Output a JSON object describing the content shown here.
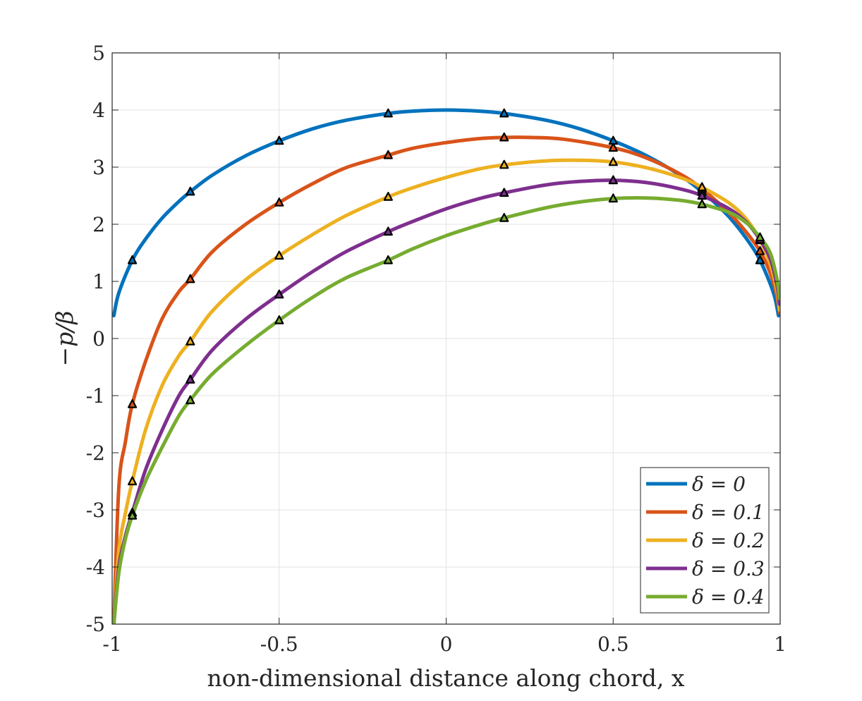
{
  "chart_data": {
    "type": "line",
    "xlabel": "non-dimensional distance along chord, x",
    "ylabel": "−p/β",
    "xlim": [
      -1,
      1
    ],
    "ylim": [
      -5,
      5
    ],
    "xticks": [
      -1,
      -0.5,
      0,
      0.5,
      1
    ],
    "xtick_labels": [
      "-1",
      "-0.5",
      "0",
      "0.5",
      "1"
    ],
    "yticks": [
      -5,
      -4,
      -3,
      -2,
      -1,
      0,
      1,
      2,
      3,
      4,
      5
    ],
    "ytick_labels": [
      "-5",
      "-4",
      "-3",
      "-2",
      "-1",
      "0",
      "1",
      "2",
      "3",
      "4",
      "5"
    ],
    "grid": true,
    "legend_position": "bottom-right",
    "marker_x": [
      -0.9397,
      -0.766,
      -0.5,
      -0.1736,
      0.1736,
      0.5,
      0.766,
      0.9397
    ],
    "series": [
      {
        "name": "δ = 0",
        "color": "#0072BD",
        "x": [
          -0.995,
          -0.98,
          -0.9397,
          -0.9,
          -0.85,
          -0.8,
          -0.766,
          -0.7,
          -0.6,
          -0.5,
          -0.4,
          -0.3,
          -0.1736,
          -0.1,
          0,
          0.1,
          0.1736,
          0.3,
          0.4,
          0.5,
          0.6,
          0.7,
          0.766,
          0.8,
          0.85,
          0.9,
          0.9397,
          0.98,
          0.995
        ],
        "y": [
          0.4,
          0.8,
          1.37,
          1.74,
          2.11,
          2.4,
          2.57,
          2.86,
          3.2,
          3.46,
          3.67,
          3.82,
          3.94,
          3.98,
          4.0,
          3.98,
          3.94,
          3.82,
          3.67,
          3.46,
          3.2,
          2.86,
          2.57,
          2.4,
          2.11,
          1.74,
          1.37,
          0.8,
          0.4
        ],
        "markers": [
          1.37,
          2.57,
          3.46,
          3.94,
          3.94,
          3.46,
          2.57,
          1.37
        ]
      },
      {
        "name": "δ = 0.1",
        "color": "#D95319",
        "x": [
          -0.995,
          -0.98,
          -0.96,
          -0.9397,
          -0.9,
          -0.85,
          -0.8,
          -0.766,
          -0.7,
          -0.6,
          -0.5,
          -0.4,
          -0.3,
          -0.1736,
          -0.1,
          0,
          0.1,
          0.1736,
          0.25,
          0.35,
          0.5,
          0.6,
          0.7,
          0.766,
          0.85,
          0.9,
          0.9397,
          0.97,
          0.99,
          0.998
        ],
        "y": [
          -5.0,
          -2.6,
          -1.8,
          -1.15,
          -0.4,
          0.35,
          0.82,
          1.04,
          1.52,
          2.0,
          2.38,
          2.71,
          2.99,
          3.21,
          3.33,
          3.43,
          3.5,
          3.52,
          3.52,
          3.49,
          3.34,
          3.16,
          2.88,
          2.62,
          2.18,
          1.85,
          1.53,
          1.15,
          0.75,
          0.45
        ],
        "markers": [
          -1.15,
          1.04,
          2.38,
          3.21,
          3.52,
          3.34,
          2.62,
          1.53
        ]
      },
      {
        "name": "δ = 0.2",
        "color": "#EDB120",
        "x": [
          -0.995,
          -0.98,
          -0.96,
          -0.9397,
          -0.9,
          -0.85,
          -0.8,
          -0.766,
          -0.7,
          -0.6,
          -0.5,
          -0.4,
          -0.3,
          -0.1736,
          -0.1,
          0,
          0.1,
          0.1736,
          0.3,
          0.4,
          0.5,
          0.6,
          0.7,
          0.766,
          0.85,
          0.9,
          0.9397,
          0.97,
          0.99,
          0.998
        ],
        "y": [
          -5.0,
          -3.7,
          -3.05,
          -2.5,
          -1.6,
          -0.82,
          -0.3,
          -0.05,
          0.48,
          1.03,
          1.45,
          1.82,
          2.15,
          2.48,
          2.64,
          2.82,
          2.97,
          3.04,
          3.11,
          3.12,
          3.09,
          2.99,
          2.82,
          2.65,
          2.36,
          2.08,
          1.72,
          1.3,
          0.85,
          0.5
        ],
        "markers": [
          -2.5,
          -0.05,
          1.45,
          2.48,
          3.04,
          3.09,
          2.65,
          1.72
        ]
      },
      {
        "name": "δ = 0.3",
        "color": "#7E2F8E",
        "x": [
          -0.995,
          -0.98,
          -0.96,
          -0.9397,
          -0.9,
          -0.85,
          -0.8,
          -0.766,
          -0.7,
          -0.6,
          -0.5,
          -0.4,
          -0.3,
          -0.1736,
          -0.1,
          0,
          0.1,
          0.1736,
          0.3,
          0.4,
          0.5,
          0.6,
          0.7,
          0.766,
          0.85,
          0.9,
          0.9397,
          0.97,
          0.99,
          0.998
        ],
        "y": [
          -5.0,
          -4.0,
          -3.45,
          -3.05,
          -2.3,
          -1.6,
          -1.0,
          -0.72,
          -0.2,
          0.34,
          0.77,
          1.17,
          1.52,
          1.87,
          2.05,
          2.27,
          2.45,
          2.55,
          2.69,
          2.75,
          2.77,
          2.73,
          2.62,
          2.5,
          2.26,
          2.03,
          1.73,
          1.4,
          0.95,
          0.6
        ],
        "markers": [
          -3.05,
          -0.72,
          0.77,
          1.87,
          2.55,
          2.77,
          2.5,
          1.73
        ]
      },
      {
        "name": "δ = 0.4",
        "color": "#77AC30",
        "x": [
          -0.995,
          -0.98,
          -0.96,
          -0.9397,
          -0.9,
          -0.85,
          -0.8,
          -0.766,
          -0.7,
          -0.6,
          -0.5,
          -0.4,
          -0.3,
          -0.1736,
          -0.1,
          0,
          0.1,
          0.1736,
          0.3,
          0.4,
          0.5,
          0.6,
          0.7,
          0.766,
          0.85,
          0.9,
          0.9397,
          0.97,
          0.99,
          0.998
        ],
        "y": [
          -5.0,
          -4.1,
          -3.5,
          -3.1,
          -2.5,
          -1.9,
          -1.35,
          -1.08,
          -0.62,
          -0.12,
          0.32,
          0.72,
          1.06,
          1.37,
          1.57,
          1.8,
          1.99,
          2.11,
          2.29,
          2.39,
          2.45,
          2.46,
          2.42,
          2.35,
          2.2,
          2.02,
          1.77,
          1.5,
          1.05,
          0.7
        ],
        "markers": [
          -3.1,
          -1.08,
          0.32,
          1.37,
          2.11,
          2.45,
          2.35,
          1.77
        ]
      }
    ]
  }
}
